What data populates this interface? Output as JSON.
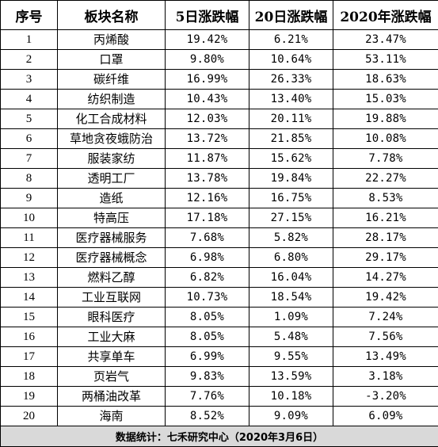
{
  "table": {
    "headers": [
      "序号",
      "板块名称",
      "5日涨跌幅",
      "20日涨跌幅",
      "2020年涨跌幅"
    ],
    "rows": [
      [
        "1",
        "丙烯酸",
        "19.42%",
        "6.21%",
        "23.47%"
      ],
      [
        "2",
        "口罩",
        "9.80%",
        "10.64%",
        "53.11%"
      ],
      [
        "3",
        "碳纤维",
        "16.99%",
        "26.33%",
        "18.63%"
      ],
      [
        "4",
        "纺织制造",
        "10.43%",
        "13.40%",
        "15.03%"
      ],
      [
        "5",
        "化工合成材料",
        "12.03%",
        "20.11%",
        "19.88%"
      ],
      [
        "6",
        "草地贪夜蛾防治",
        "13.72%",
        "21.85%",
        "10.08%"
      ],
      [
        "7",
        "服装家纺",
        "11.87%",
        "15.62%",
        "7.78%"
      ],
      [
        "8",
        "透明工厂",
        "13.78%",
        "19.84%",
        "22.27%"
      ],
      [
        "9",
        "造纸",
        "12.16%",
        "16.75%",
        "8.53%"
      ],
      [
        "10",
        "特高压",
        "17.18%",
        "27.15%",
        "16.21%"
      ],
      [
        "11",
        "医疗器械服务",
        "7.68%",
        "5.82%",
        "28.17%"
      ],
      [
        "12",
        "医疗器械概念",
        "6.98%",
        "6.80%",
        "29.17%"
      ],
      [
        "13",
        "燃料乙醇",
        "6.82%",
        "16.04%",
        "14.27%"
      ],
      [
        "14",
        "工业互联网",
        "10.73%",
        "18.54%",
        "19.42%"
      ],
      [
        "15",
        "眼科医疗",
        "8.05%",
        "1.09%",
        "7.24%"
      ],
      [
        "16",
        "工业大麻",
        "8.05%",
        "5.48%",
        "7.56%"
      ],
      [
        "17",
        "共享单车",
        "6.99%",
        "9.55%",
        "13.49%"
      ],
      [
        "18",
        "页岩气",
        "9.83%",
        "13.59%",
        "3.18%"
      ],
      [
        "19",
        "两桶油改革",
        "7.76%",
        "10.18%",
        "-3.20%"
      ],
      [
        "20",
        "海南",
        "8.52%",
        "9.09%",
        "6.09%"
      ]
    ],
    "footer": "数据统计：七禾研究中心（2020年3月6日）"
  }
}
